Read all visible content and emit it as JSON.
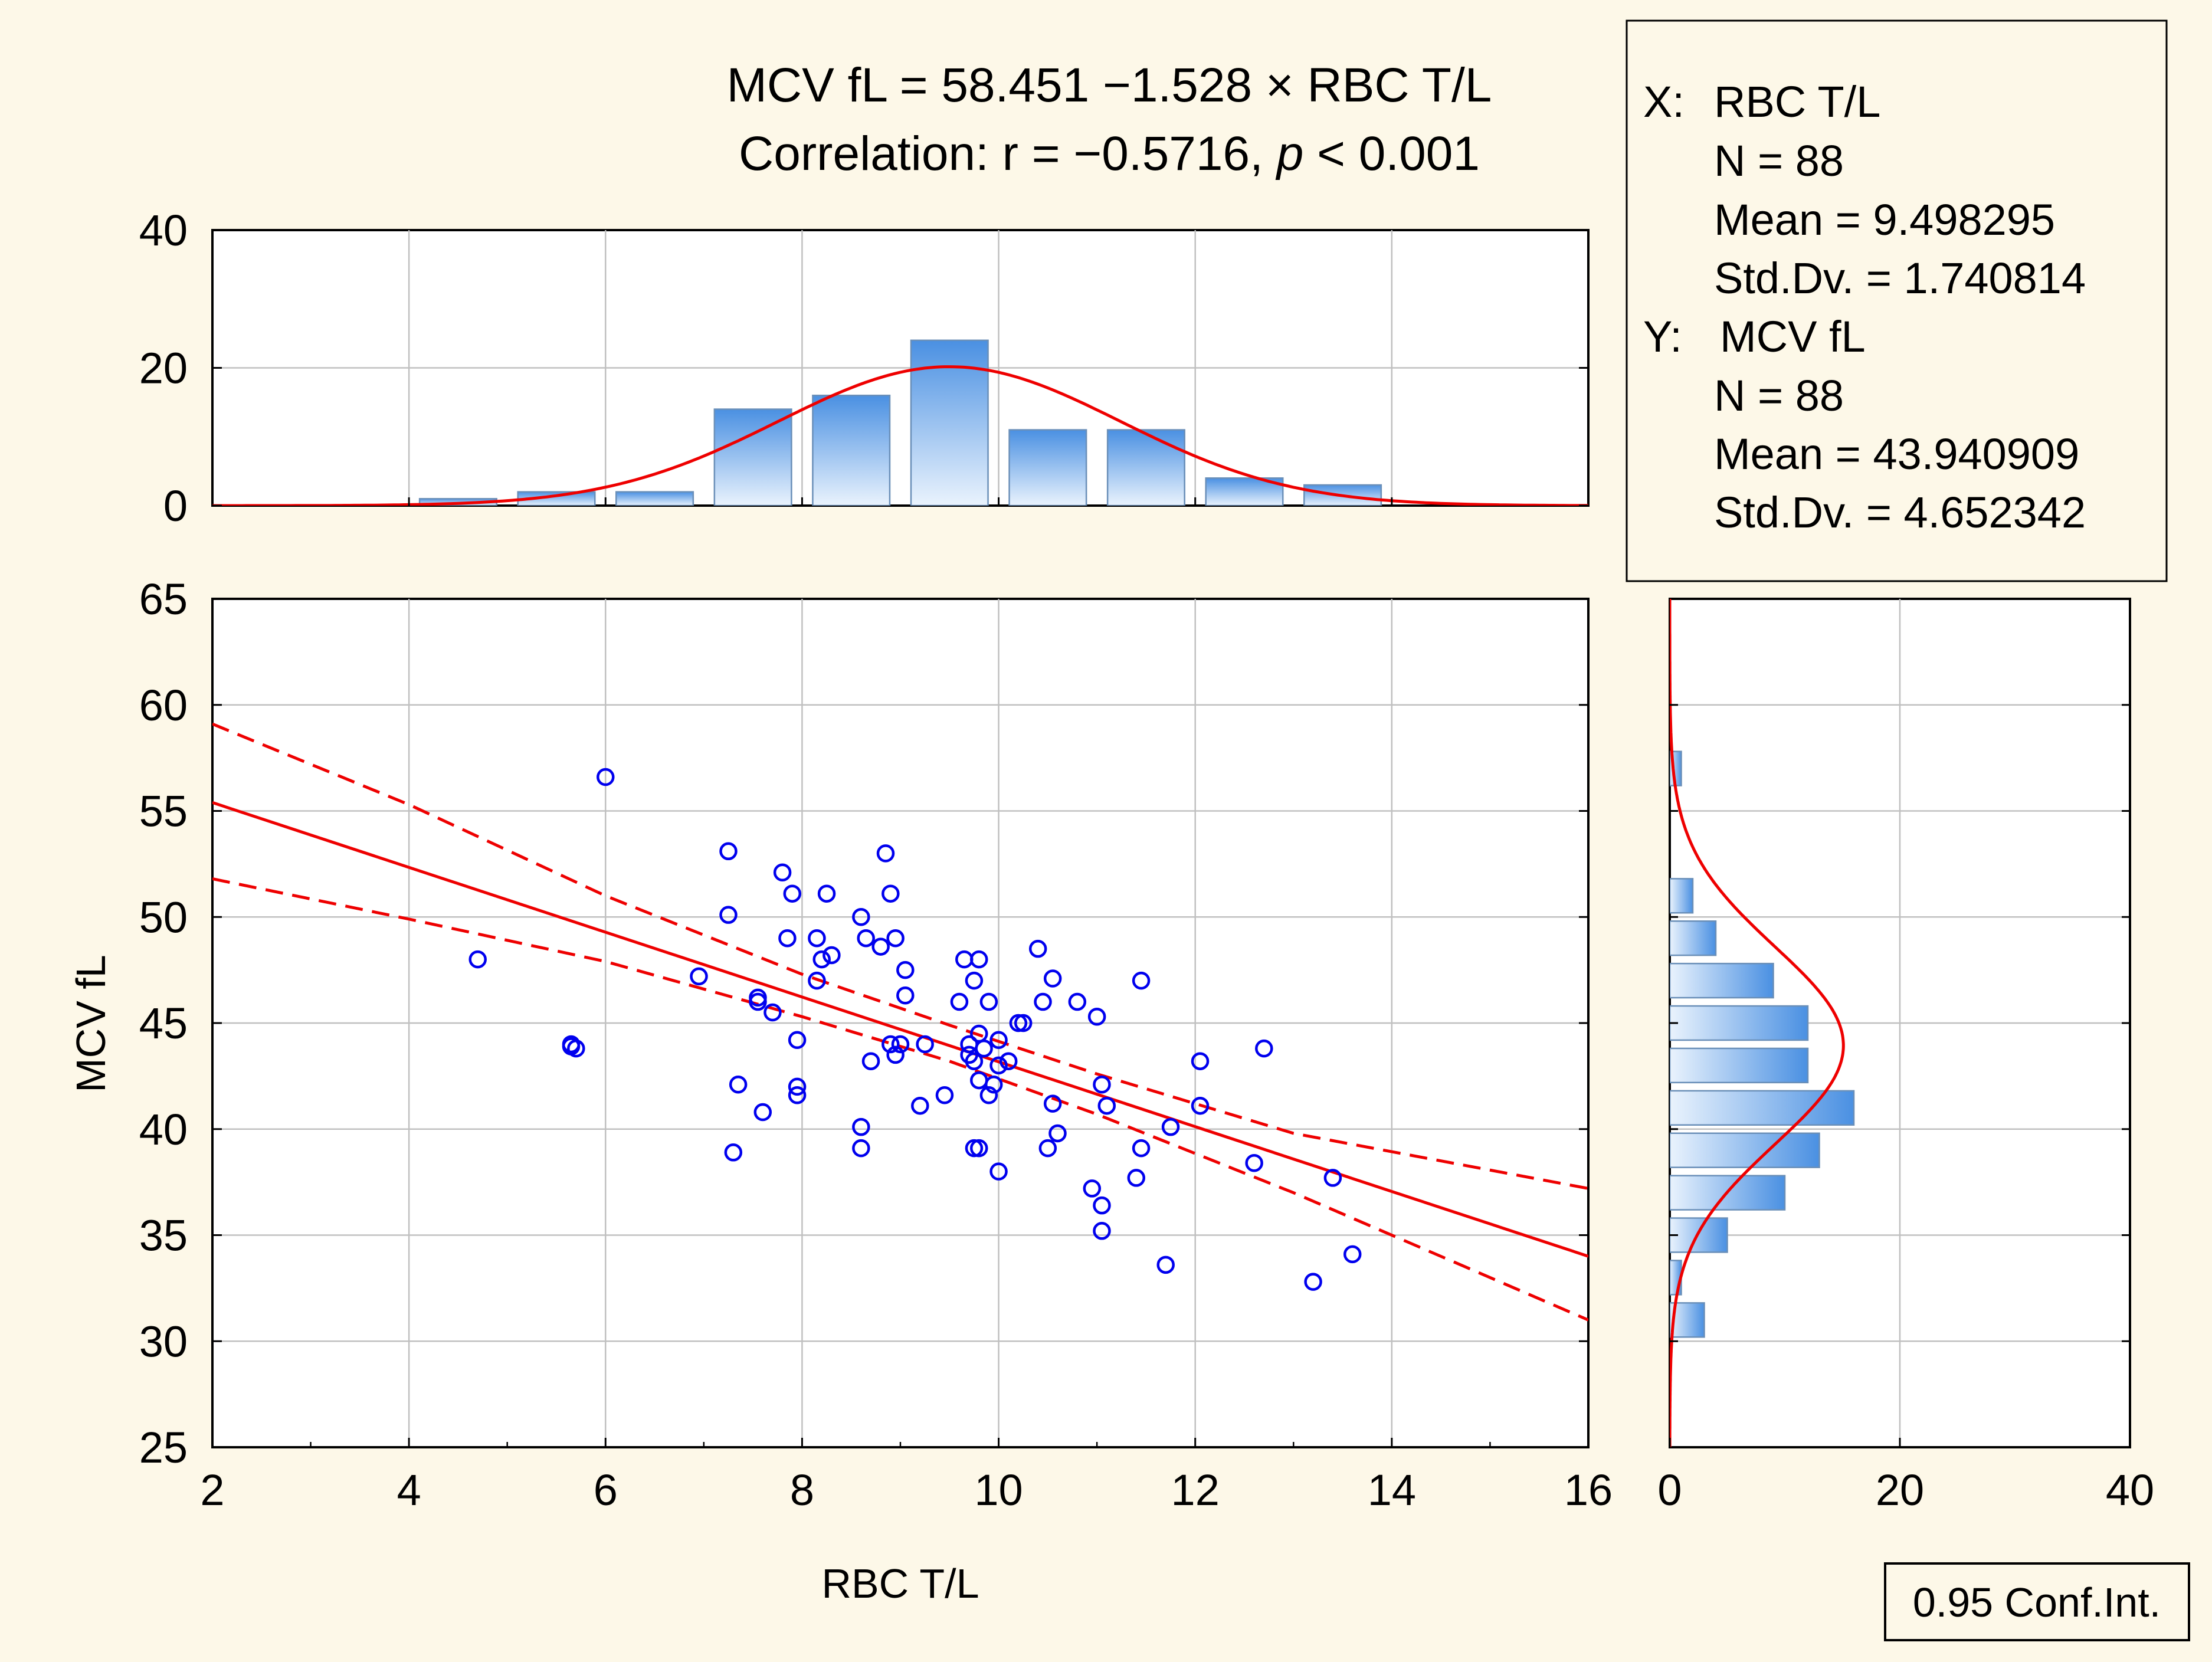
{
  "colors": {
    "background": "#fdf8e8",
    "plot_bg": "#ffffff",
    "points": "#0000ee",
    "fit": "#ee0000",
    "bar_top": "#4a90e2",
    "bar_bottom": "#eaf3fd",
    "grid": "#c0c0c0"
  },
  "chart_data": {
    "type": "scatter",
    "title_line1": "MCV fL = 58.451 −1.528 × RBC T/L",
    "title_line2_prefix": "Correlation: r = −0.5716, ",
    "title_line2_p": "p",
    "title_line2_suffix": " < 0.001",
    "xlabel": "RBC T/L",
    "ylabel": "MCV fL",
    "xlim": [
      2,
      16
    ],
    "ylim": [
      25,
      65
    ],
    "xticks": [
      "2",
      "4",
      "6",
      "8",
      "10",
      "12",
      "14",
      "16"
    ],
    "yticks": [
      "25",
      "30",
      "35",
      "40",
      "45",
      "50",
      "55",
      "60",
      "65"
    ],
    "regression": {
      "intercept": 58.451,
      "slope": -1.528
    },
    "confidence_band": {
      "label": "0.95 Conf.Int.",
      "x": [
        2,
        4,
        6,
        8,
        9.5,
        11,
        13,
        16
      ],
      "upper": [
        59.1,
        55.3,
        51.0,
        47.3,
        44.9,
        42.6,
        39.8,
        37.2
      ],
      "lower": [
        51.8,
        49.9,
        47.9,
        45.3,
        43.2,
        40.7,
        37.0,
        31.0
      ]
    },
    "points": [
      [
        4.7,
        48.0
      ],
      [
        5.65,
        44.0
      ],
      [
        5.7,
        43.8
      ],
      [
        6.0,
        56.6
      ],
      [
        6.95,
        47.2
      ],
      [
        7.25,
        53.1
      ],
      [
        7.25,
        50.1
      ],
      [
        7.3,
        38.9
      ],
      [
        7.35,
        42.1
      ],
      [
        7.55,
        46.2
      ],
      [
        7.55,
        46.0
      ],
      [
        7.6,
        40.8
      ],
      [
        7.7,
        45.5
      ],
      [
        7.8,
        52.1
      ],
      [
        7.85,
        49.0
      ],
      [
        7.9,
        51.1
      ],
      [
        7.95,
        44.2
      ],
      [
        7.95,
        42.0
      ],
      [
        7.95,
        41.6
      ],
      [
        8.15,
        49.0
      ],
      [
        8.15,
        47.0
      ],
      [
        8.2,
        48.0
      ],
      [
        8.25,
        51.1
      ],
      [
        8.3,
        48.2
      ],
      [
        8.6,
        50.0
      ],
      [
        8.6,
        40.1
      ],
      [
        8.6,
        39.1
      ],
      [
        8.65,
        49.0
      ],
      [
        8.7,
        43.2
      ],
      [
        8.8,
        48.6
      ],
      [
        8.85,
        53.0
      ],
      [
        8.9,
        51.1
      ],
      [
        8.9,
        44.0
      ],
      [
        8.95,
        49.0
      ],
      [
        8.95,
        43.5
      ],
      [
        9.0,
        44.0
      ],
      [
        9.05,
        47.5
      ],
      [
        9.05,
        46.3
      ],
      [
        9.2,
        41.1
      ],
      [
        9.25,
        44.0
      ],
      [
        9.45,
        41.6
      ],
      [
        9.6,
        46.0
      ],
      [
        9.65,
        48.0
      ],
      [
        9.7,
        44.0
      ],
      [
        9.7,
        43.5
      ],
      [
        9.75,
        47.0
      ],
      [
        9.75,
        43.2
      ],
      [
        9.8,
        48.0
      ],
      [
        9.8,
        44.5
      ],
      [
        9.8,
        42.3
      ],
      [
        9.75,
        39.1
      ],
      [
        9.8,
        39.1
      ],
      [
        9.85,
        43.8
      ],
      [
        9.9,
        46.0
      ],
      [
        9.9,
        41.6
      ],
      [
        9.95,
        42.1
      ],
      [
        10.0,
        44.2
      ],
      [
        10.0,
        43.0
      ],
      [
        10.0,
        38.0
      ],
      [
        10.1,
        43.2
      ],
      [
        10.2,
        45.0
      ],
      [
        10.25,
        45.0
      ],
      [
        10.4,
        48.5
      ],
      [
        10.45,
        46.0
      ],
      [
        10.5,
        39.1
      ],
      [
        10.55,
        47.1
      ],
      [
        10.55,
        41.2
      ],
      [
        10.6,
        39.8
      ],
      [
        10.8,
        46.0
      ],
      [
        10.95,
        37.2
      ],
      [
        11.0,
        45.3
      ],
      [
        11.05,
        42.1
      ],
      [
        11.05,
        36.4
      ],
      [
        11.05,
        35.2
      ],
      [
        11.1,
        41.1
      ],
      [
        11.4,
        37.7
      ],
      [
        11.45,
        47.0
      ],
      [
        11.45,
        39.1
      ],
      [
        11.7,
        33.6
      ],
      [
        11.75,
        40.1
      ],
      [
        12.05,
        43.2
      ],
      [
        12.05,
        41.1
      ],
      [
        12.6,
        38.4
      ],
      [
        12.7,
        43.8
      ],
      [
        13.2,
        32.8
      ],
      [
        13.4,
        37.7
      ],
      [
        13.6,
        34.1
      ],
      [
        5.65,
        43.9
      ]
    ],
    "x_histogram": {
      "bin_edges": [
        4,
        5,
        6,
        7,
        8,
        9,
        10,
        11,
        12,
        13,
        14
      ],
      "counts": [
        1,
        2,
        2,
        14,
        16,
        24,
        11,
        11,
        4,
        3
      ],
      "ylim": [
        0,
        40
      ],
      "yticks": [
        "0",
        "20",
        "40"
      ],
      "normal_fit": {
        "mean": 9.498295,
        "sd": 1.740814,
        "n": 88,
        "bin_width": 1
      }
    },
    "y_histogram": {
      "bin_edges": [
        30,
        32,
        34,
        36,
        38,
        40,
        42,
        44,
        46,
        48,
        50,
        52,
        54,
        56,
        58
      ],
      "counts": [
        3,
        1,
        5,
        10,
        13,
        16,
        12,
        12,
        9,
        4,
        2,
        0,
        0,
        1
      ],
      "xlim": [
        0,
        40
      ],
      "xticks": [
        "0",
        "20",
        "40"
      ],
      "normal_fit": {
        "mean": 43.940909,
        "sd": 4.652342,
        "n": 88,
        "bin_width": 2
      }
    }
  },
  "stats_box": {
    "x_header": "X:",
    "x_name": "RBC T/L",
    "x_n": "N = 88",
    "x_mean": "Mean = 9.498295",
    "x_sd": "Std.Dv. = 1.740814",
    "y_header": "Y:",
    "y_name": "MCV fL",
    "y_n": "N = 88",
    "y_mean": "Mean = 43.940909",
    "y_sd": "Std.Dv. = 4.652342"
  },
  "legend": {
    "label": "0.95 Conf.Int."
  }
}
